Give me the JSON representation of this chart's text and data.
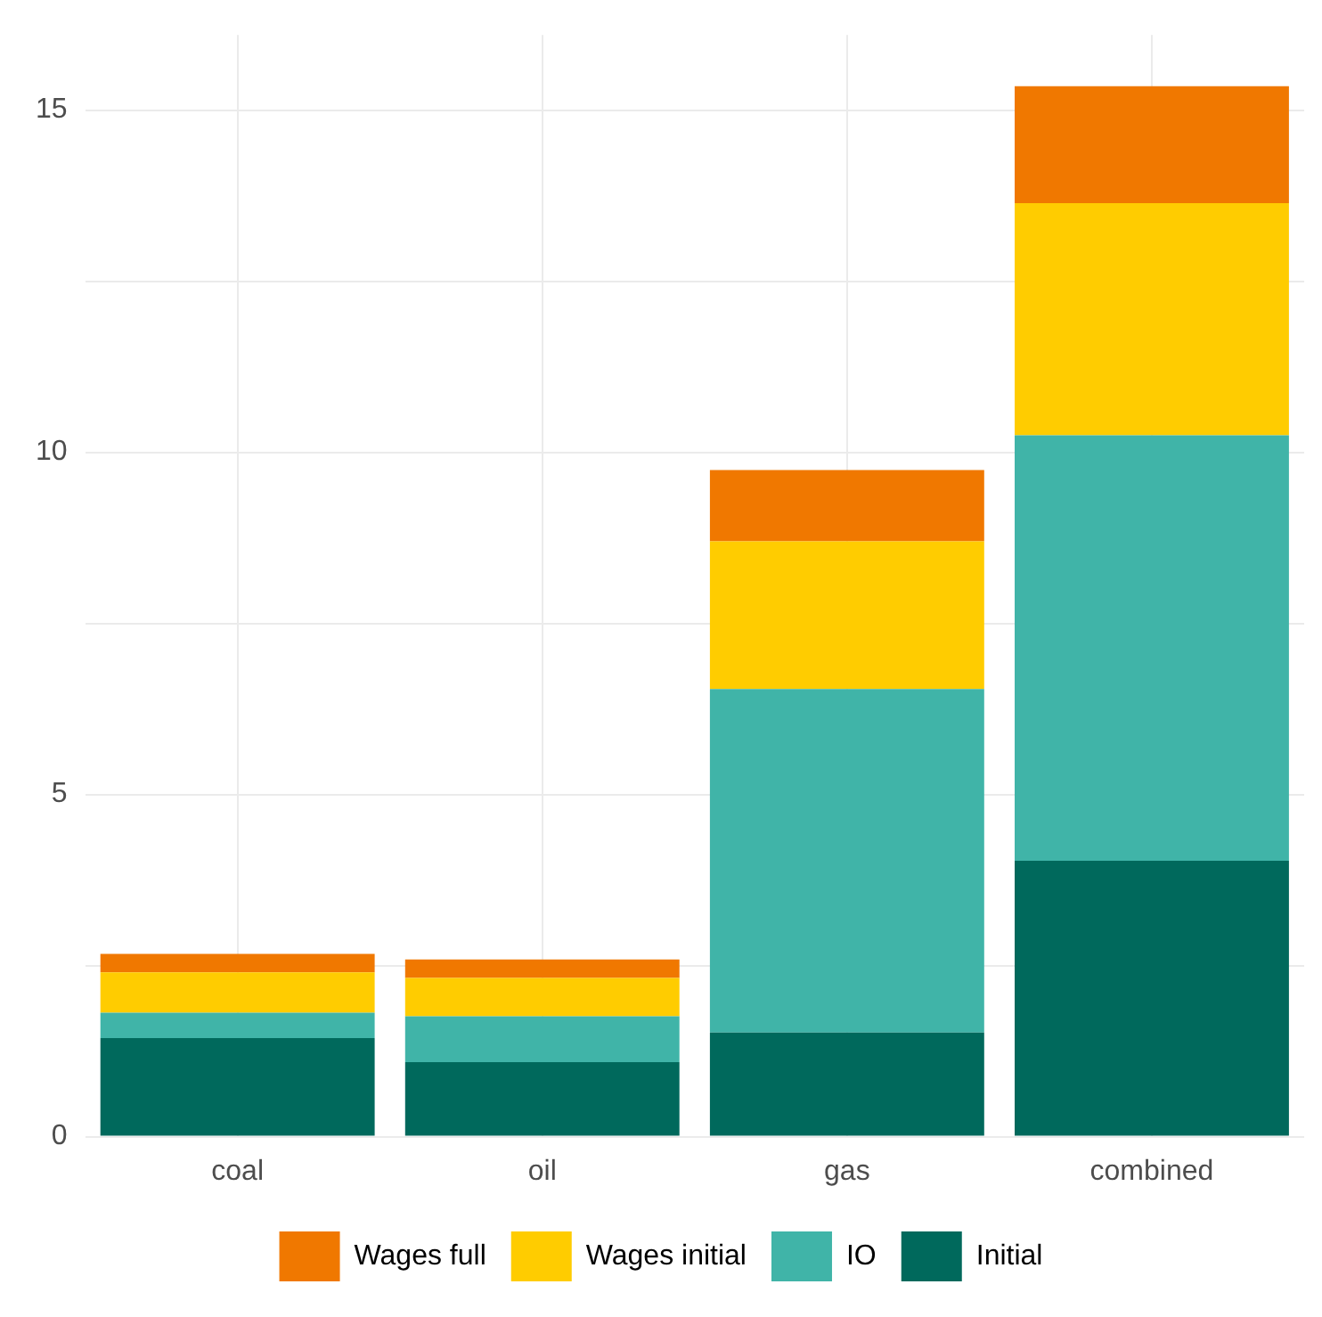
{
  "chart_data": {
    "type": "bar",
    "stacked": true,
    "categories": [
      "coal",
      "oil",
      "gas",
      "combined"
    ],
    "series": [
      {
        "name": "Initial",
        "color": "#00695c",
        "values": [
          1.44,
          1.09,
          1.52,
          4.03
        ]
      },
      {
        "name": "IO",
        "color": "#40b4a8",
        "values": [
          0.37,
          0.67,
          5.02,
          6.22
        ]
      },
      {
        "name": "Wages initial",
        "color": "#ffcc00",
        "values": [
          0.59,
          0.56,
          2.16,
          3.39
        ]
      },
      {
        "name": "Wages full",
        "color": "#f07800",
        "values": [
          0.27,
          0.27,
          1.04,
          1.71
        ]
      }
    ],
    "ylim": [
      0,
      16.1
    ],
    "yticks": [
      0,
      {
        "value": 2.5,
        "label": null
      },
      5,
      {
        "value": 7.5,
        "label": null
      },
      10,
      {
        "value": 12.5,
        "label": null
      },
      15
    ],
    "grid": true,
    "legend": "bottom"
  }
}
